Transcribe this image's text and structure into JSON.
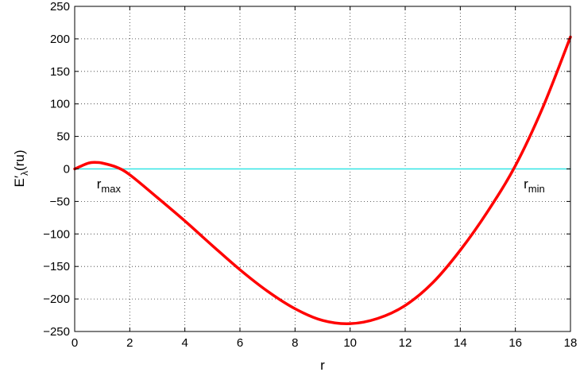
{
  "chart_data": {
    "type": "line",
    "title": "",
    "xlabel": "r",
    "ylabel": "E′λ(ru)",
    "ylabel_parts": {
      "main": "E′",
      "sub": "λ",
      "rest": "(ru)"
    },
    "xlim": [
      0,
      18
    ],
    "ylim": [
      -250,
      250
    ],
    "x_ticks": [
      0,
      2,
      4,
      6,
      8,
      10,
      12,
      14,
      16,
      18
    ],
    "y_ticks": [
      250,
      200,
      150,
      100,
      50,
      0,
      -50,
      -100,
      -150,
      -200,
      -250
    ],
    "x_tick_labels": [
      "0",
      "2",
      "4",
      "6",
      "8",
      "10",
      "12",
      "14",
      "16",
      "18"
    ],
    "y_tick_labels": [
      "250",
      "200",
      "150",
      "100",
      "50",
      "0",
      "−50",
      "−100",
      "−150",
      "−200",
      "−250"
    ],
    "grid": true,
    "grid_style": "dotted",
    "series": [
      {
        "color": "#ff0000",
        "x": [
          0,
          0.5,
          0.8,
          1,
          1.5,
          2,
          3,
          4,
          5,
          6,
          7,
          8,
          9,
          10,
          11,
          12,
          13,
          14,
          15,
          16,
          17,
          18
        ],
        "y": [
          0,
          9,
          10,
          9,
          3,
          -9,
          -44,
          -80,
          -118,
          -155,
          -188,
          -215,
          -233,
          -238,
          -230,
          -210,
          -175,
          -125,
          -65,
          5,
          95,
          203
        ]
      },
      {
        "color": "#33e6e6",
        "x": [
          0,
          18
        ],
        "y": [
          0,
          0
        ]
      }
    ],
    "annotations": [
      {
        "text": "r",
        "sub": "max",
        "x": 0.8,
        "y": -30
      },
      {
        "text": "r",
        "sub": "min",
        "x": 16.3,
        "y": -30
      }
    ]
  }
}
